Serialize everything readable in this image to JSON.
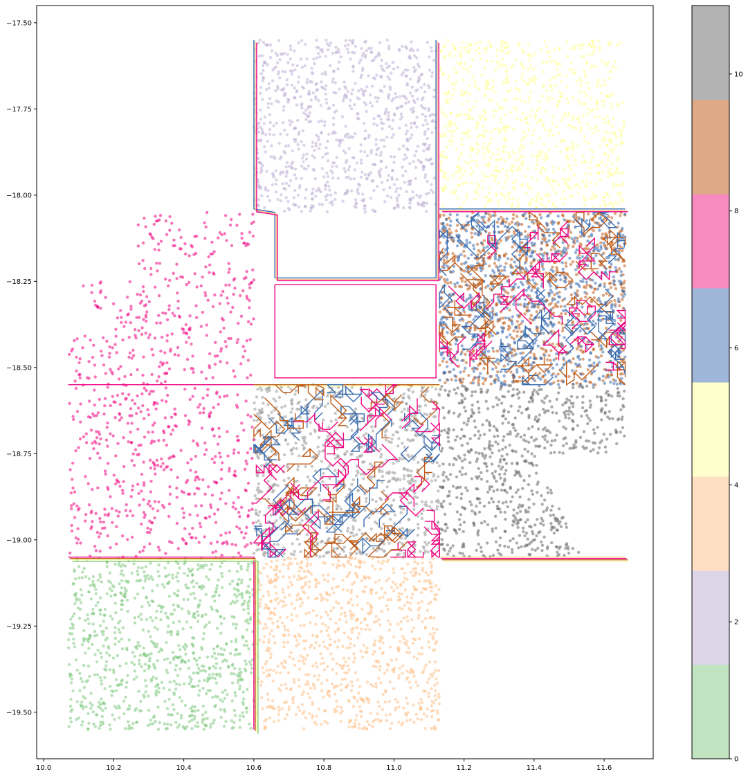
{
  "chart_data": {
    "type": "scatter",
    "title": "",
    "xlabel": "",
    "ylabel": "",
    "xlim": [
      9.98,
      11.74
    ],
    "ylim": [
      -19.635,
      -17.45
    ],
    "x_ticks": [
      10.0,
      10.2,
      10.4,
      10.6,
      10.8,
      11.0,
      11.2,
      11.4,
      11.6
    ],
    "x_tick_labels": [
      "10.0",
      "10.2",
      "10.4",
      "10.6",
      "10.8",
      "11.0",
      "11.2",
      "11.4",
      "11.6"
    ],
    "y_ticks": [
      -17.5,
      -17.75,
      -18.0,
      -18.25,
      -18.5,
      -18.75,
      -19.0,
      -19.25,
      -19.5
    ],
    "y_tick_labels": [
      "−17.50",
      "−17.75",
      "−18.00",
      "−18.25",
      "−18.50",
      "−18.75",
      "−19.00",
      "−19.25",
      "−19.50"
    ],
    "grid": false,
    "clusters": [
      {
        "label": 0,
        "color": "#7fc97f",
        "x_range": [
          10.07,
          10.6
        ],
        "y_range": [
          -19.55,
          -19.05
        ]
      },
      {
        "label": 1,
        "color": "#fdc086",
        "x_range": [
          10.6,
          11.13
        ],
        "y_range": [
          -19.55,
          -19.05
        ]
      },
      {
        "label": 2,
        "color": "#beaed4",
        "x_range": [
          10.6,
          11.12
        ],
        "y_range": [
          -18.05,
          -17.55
        ]
      },
      {
        "label": 3,
        "color": "#ffff99",
        "x_range": [
          11.13,
          11.66
        ],
        "y_range": [
          -18.04,
          -17.55
        ]
      },
      {
        "label": 4,
        "color": "#bf5b17",
        "x_range": [
          11.13,
          11.66
        ],
        "y_range": [
          -18.55,
          -18.05
        ]
      },
      {
        "label": 5,
        "color": "#386cb0",
        "x_range": [
          11.13,
          11.66
        ],
        "y_range": [
          -18.55,
          -18.05
        ]
      },
      {
        "label": 6,
        "color": "#666666",
        "x_range": [
          11.13,
          11.66
        ],
        "y_range": [
          -19.05,
          -18.55
        ]
      },
      {
        "label": 7,
        "color": "#999999",
        "x_range": [
          10.6,
          11.13
        ],
        "y_range": [
          -19.05,
          -18.55
        ]
      },
      {
        "label": 8,
        "color": "#f0027f",
        "x_range": [
          10.07,
          10.6
        ],
        "y_range": [
          -19.05,
          -18.05
        ]
      }
    ],
    "colorbar": {
      "range": [
        0,
        11
      ],
      "tick_values": [
        0,
        2,
        4,
        6,
        8,
        10
      ],
      "tick_labels": [
        "0",
        "2",
        "4",
        "6",
        "8",
        "10"
      ],
      "colors": [
        "#bfe4bf",
        "#ddd6e9",
        "#fedfc2",
        "#ffffcc",
        "#9fb6d8",
        "#f78bc0",
        "#dfa987",
        "#b3b3b3"
      ]
    }
  }
}
